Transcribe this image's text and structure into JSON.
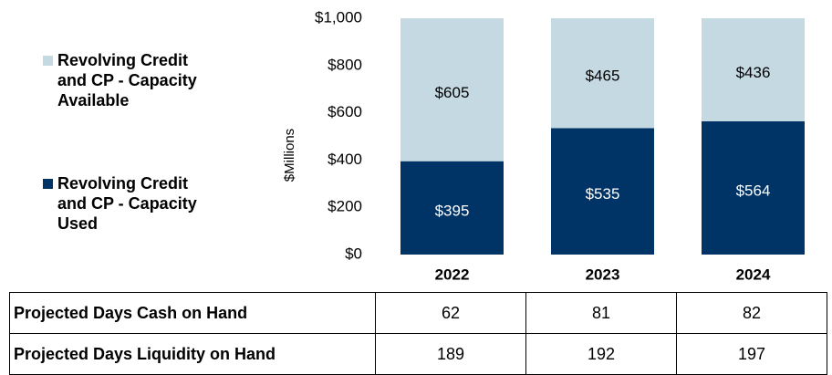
{
  "chart_data": {
    "type": "stacked_bar",
    "y_label": "$Millions",
    "categories": [
      "2022",
      "2023",
      "2024"
    ],
    "series": [
      {
        "name": "Revolving Credit and CP - Capacity Used",
        "color": "#003366",
        "values": [
          395,
          535,
          564
        ],
        "value_labels": [
          "$395",
          "$535",
          "$564"
        ]
      },
      {
        "name": "Revolving Credit and CP - Capacity Available",
        "color": "#c5d9e3",
        "values": [
          605,
          465,
          436
        ],
        "value_labels": [
          "$605",
          "$465",
          "$436"
        ]
      }
    ],
    "ylim": [
      0,
      1000
    ],
    "yticks": [
      {
        "value": 0,
        "label": "$0"
      },
      {
        "value": 200,
        "label": "$200"
      },
      {
        "value": 400,
        "label": "$400"
      },
      {
        "value": 600,
        "label": "$600"
      },
      {
        "value": 800,
        "label": "$800"
      },
      {
        "value": 1000,
        "label": "$1,000"
      }
    ]
  },
  "table": {
    "rows": [
      [
        "Projected Days Cash on Hand",
        "62",
        "81",
        "82"
      ],
      [
        "Projected Days Liquidity on Hand",
        "189",
        "192",
        "197"
      ]
    ]
  }
}
